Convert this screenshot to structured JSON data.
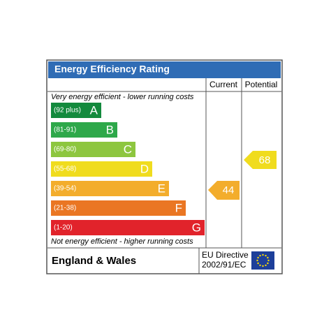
{
  "header": {
    "title": "Energy Efficiency Rating",
    "current": "Current",
    "potential": "Potential"
  },
  "top_note": "Very energy efficient - lower running costs",
  "bottom_note": "Not energy efficient - higher running costs",
  "bands": [
    {
      "range": "(92 plus)",
      "letter": "A",
      "color": "#138a3d"
    },
    {
      "range": "(81-91)",
      "letter": "B",
      "color": "#2ea84a"
    },
    {
      "range": "(69-80)",
      "letter": "C",
      "color": "#8dc63f"
    },
    {
      "range": "(55-68)",
      "letter": "D",
      "color": "#f0dc1e"
    },
    {
      "range": "(39-54)",
      "letter": "E",
      "color": "#f3ad2c"
    },
    {
      "range": "(21-38)",
      "letter": "F",
      "color": "#ea7623"
    },
    {
      "range": "(1-20)",
      "letter": "G",
      "color": "#e1232b"
    }
  ],
  "ratings": {
    "current": 44,
    "potential": 68
  },
  "footer": {
    "region": "England & Wales",
    "directive_line1": "EU Directive",
    "directive_line2": "2002/91/EC"
  }
}
